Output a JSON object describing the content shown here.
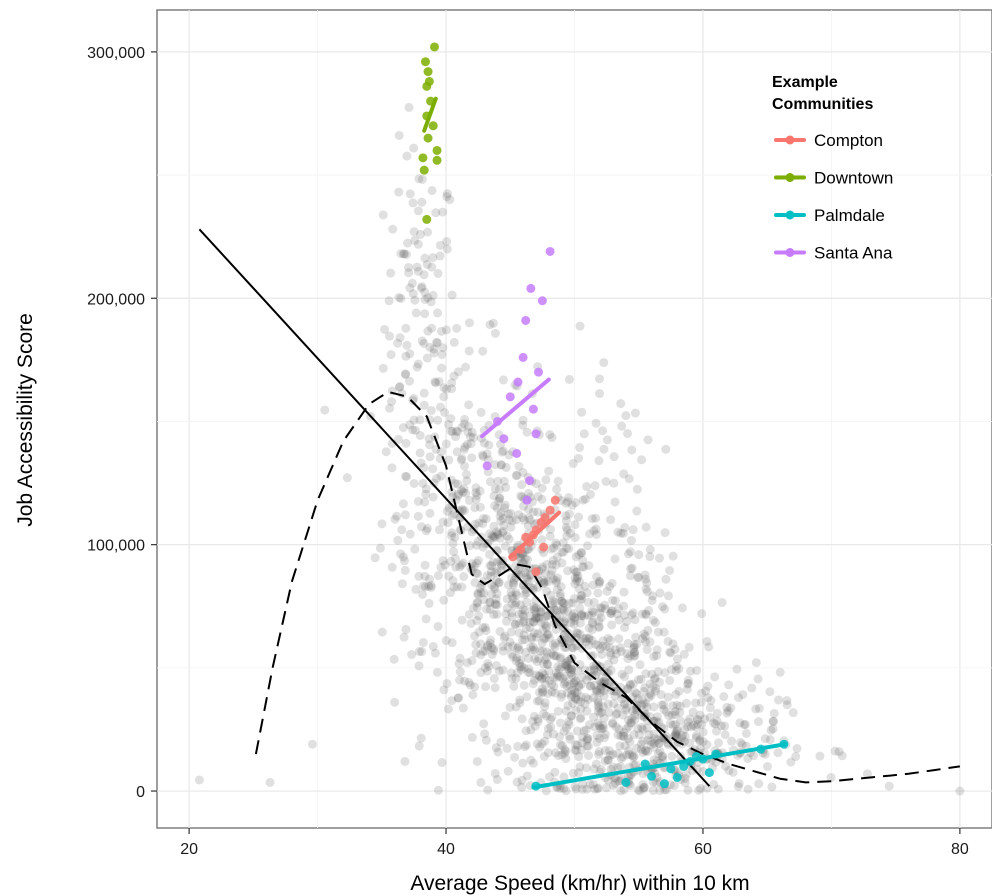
{
  "chart_data": {
    "type": "scatter",
    "xlabel": "Average Speed (km/hr) within 10 km",
    "ylabel": "Job Accessibility Score",
    "xlim": [
      17.5,
      82.5
    ],
    "ylim": [
      -15000,
      317000
    ],
    "x_ticks": [
      20,
      40,
      60,
      80
    ],
    "x_tick_labels": [
      "20",
      "40",
      "60",
      "80"
    ],
    "y_ticks": [
      0,
      100000,
      200000,
      300000
    ],
    "y_tick_labels": [
      "0",
      "100,000",
      "200,000",
      "300,000"
    ],
    "grid": true,
    "background_points": {
      "description_color": "#555555",
      "clusters": [
        {
          "cx": 38,
          "cy": 190000,
          "sx": 1.4,
          "sy": 35000,
          "n": 120
        },
        {
          "cx": 41,
          "cy": 120000,
          "sx": 3.0,
          "sy": 30000,
          "n": 220
        },
        {
          "cx": 46,
          "cy": 85000,
          "sx": 3.5,
          "sy": 25000,
          "n": 420
        },
        {
          "cx": 51,
          "cy": 50000,
          "sx": 4.0,
          "sy": 22000,
          "n": 520
        },
        {
          "cx": 56,
          "cy": 20000,
          "sx": 5.0,
          "sy": 14000,
          "n": 420
        },
        {
          "cx": 52,
          "cy": 130000,
          "sx": 3.0,
          "sy": 35000,
          "n": 60
        }
      ],
      "outliers": [
        [
          20.8,
          4500
        ],
        [
          26.3,
          3500
        ],
        [
          29.6,
          19000
        ],
        [
          80,
          0
        ],
        [
          36.8,
          12000
        ],
        [
          36,
          36000
        ],
        [
          70.6,
          16000
        ],
        [
          72.8,
          7000
        ],
        [
          74.5,
          2000
        ]
      ]
    },
    "series": [
      {
        "name": "Compton",
        "color": "#F8766D",
        "points": [
          [
            45.2,
            95000
          ],
          [
            45.8,
            98000
          ],
          [
            46.5,
            101000
          ],
          [
            46.8,
            104000
          ],
          [
            47.0,
            106000
          ],
          [
            47.4,
            109000
          ],
          [
            47.7,
            111000
          ],
          [
            48.1,
            114000
          ],
          [
            48.5,
            118000
          ],
          [
            47.0,
            89000
          ],
          [
            46.2,
            103000
          ],
          [
            47.6,
            99000
          ]
        ],
        "fit": [
          [
            45.0,
            95000
          ],
          [
            48.8,
            113000
          ]
        ]
      },
      {
        "name": "Downtown",
        "color": "#7CAE00",
        "points": [
          [
            38.5,
            232000
          ],
          [
            38.3,
            252000
          ],
          [
            38.2,
            257000
          ],
          [
            39.3,
            256000
          ],
          [
            39.3,
            260000
          ],
          [
            38.6,
            265000
          ],
          [
            39.0,
            270000
          ],
          [
            38.5,
            274000
          ],
          [
            38.8,
            280000
          ],
          [
            38.5,
            286000
          ],
          [
            38.7,
            288000
          ],
          [
            38.6,
            292000
          ],
          [
            39.1,
            302000
          ],
          [
            38.4,
            296000
          ]
        ],
        "fit": [
          [
            38.3,
            268000
          ],
          [
            39.2,
            281000
          ]
        ]
      },
      {
        "name": "Palmdale",
        "color": "#00BFC4",
        "points": [
          [
            47.0,
            2000
          ],
          [
            54.0,
            3500
          ],
          [
            56.0,
            6000
          ],
          [
            57.5,
            9000
          ],
          [
            58.5,
            10000
          ],
          [
            59.0,
            12000
          ],
          [
            59.5,
            14000
          ],
          [
            60.0,
            13000
          ],
          [
            61.0,
            15000
          ],
          [
            64.5,
            17000
          ],
          [
            66.3,
            19000
          ],
          [
            57.0,
            3000
          ],
          [
            58.0,
            5500
          ],
          [
            55.5,
            11000
          ],
          [
            60.5,
            7500
          ]
        ],
        "fit": [
          [
            46.8,
            1500
          ],
          [
            66.4,
            19000
          ]
        ]
      },
      {
        "name": "Santa Ana",
        "color": "#C77CFF",
        "points": [
          [
            43.2,
            132000
          ],
          [
            44.0,
            150000
          ],
          [
            45.0,
            160000
          ],
          [
            45.6,
            166000
          ],
          [
            46.0,
            176000
          ],
          [
            46.2,
            191000
          ],
          [
            46.6,
            204000
          ],
          [
            47.5,
            199000
          ],
          [
            48.1,
            219000
          ],
          [
            47.2,
            170000
          ],
          [
            46.8,
            155000
          ],
          [
            47.0,
            145000
          ],
          [
            46.5,
            126000
          ],
          [
            46.3,
            118000
          ],
          [
            44.5,
            143000
          ],
          [
            45.5,
            137000
          ]
        ],
        "fit": [
          [
            42.8,
            144000
          ],
          [
            48.0,
            167000
          ]
        ]
      }
    ],
    "linear_fit": [
      [
        20.8,
        228000
      ],
      [
        60.5,
        2000
      ]
    ],
    "smooth_fit": [
      [
        25.2,
        15000
      ],
      [
        26.5,
        50000
      ],
      [
        28.0,
        85000
      ],
      [
        30.0,
        118000
      ],
      [
        32.0,
        142000
      ],
      [
        34.0,
        157000
      ],
      [
        35.5,
        162000
      ],
      [
        37.0,
        160000
      ],
      [
        38.5,
        152000
      ],
      [
        40.0,
        132000
      ],
      [
        41.0,
        110000
      ],
      [
        42.0,
        88000
      ],
      [
        43.0,
        84000
      ],
      [
        44.0,
        87000
      ],
      [
        45.5,
        92000
      ],
      [
        46.5,
        91000
      ],
      [
        47.5,
        82000
      ],
      [
        48.5,
        67000
      ],
      [
        50.0,
        52000
      ],
      [
        52.0,
        44000
      ],
      [
        54.0,
        38000
      ],
      [
        56.0,
        28000
      ],
      [
        58.0,
        20000
      ],
      [
        60.0,
        15000
      ],
      [
        62.0,
        11000
      ],
      [
        64.0,
        8000
      ],
      [
        66.0,
        5000
      ],
      [
        68.0,
        3500
      ],
      [
        70.0,
        4000
      ],
      [
        72.0,
        5000
      ],
      [
        74.0,
        6000
      ],
      [
        76.0,
        7000
      ],
      [
        78.0,
        8500
      ],
      [
        80.0,
        10000
      ]
    ],
    "legend": {
      "title_line1": "Example",
      "title_line2": "Communities",
      "position": "top-right",
      "items": [
        {
          "label": "Compton",
          "color": "#F8766D"
        },
        {
          "label": "Downtown",
          "color": "#7CAE00"
        },
        {
          "label": "Palmdale",
          "color": "#00BFC4"
        },
        {
          "label": "Santa Ana",
          "color": "#C77CFF"
        }
      ]
    }
  }
}
